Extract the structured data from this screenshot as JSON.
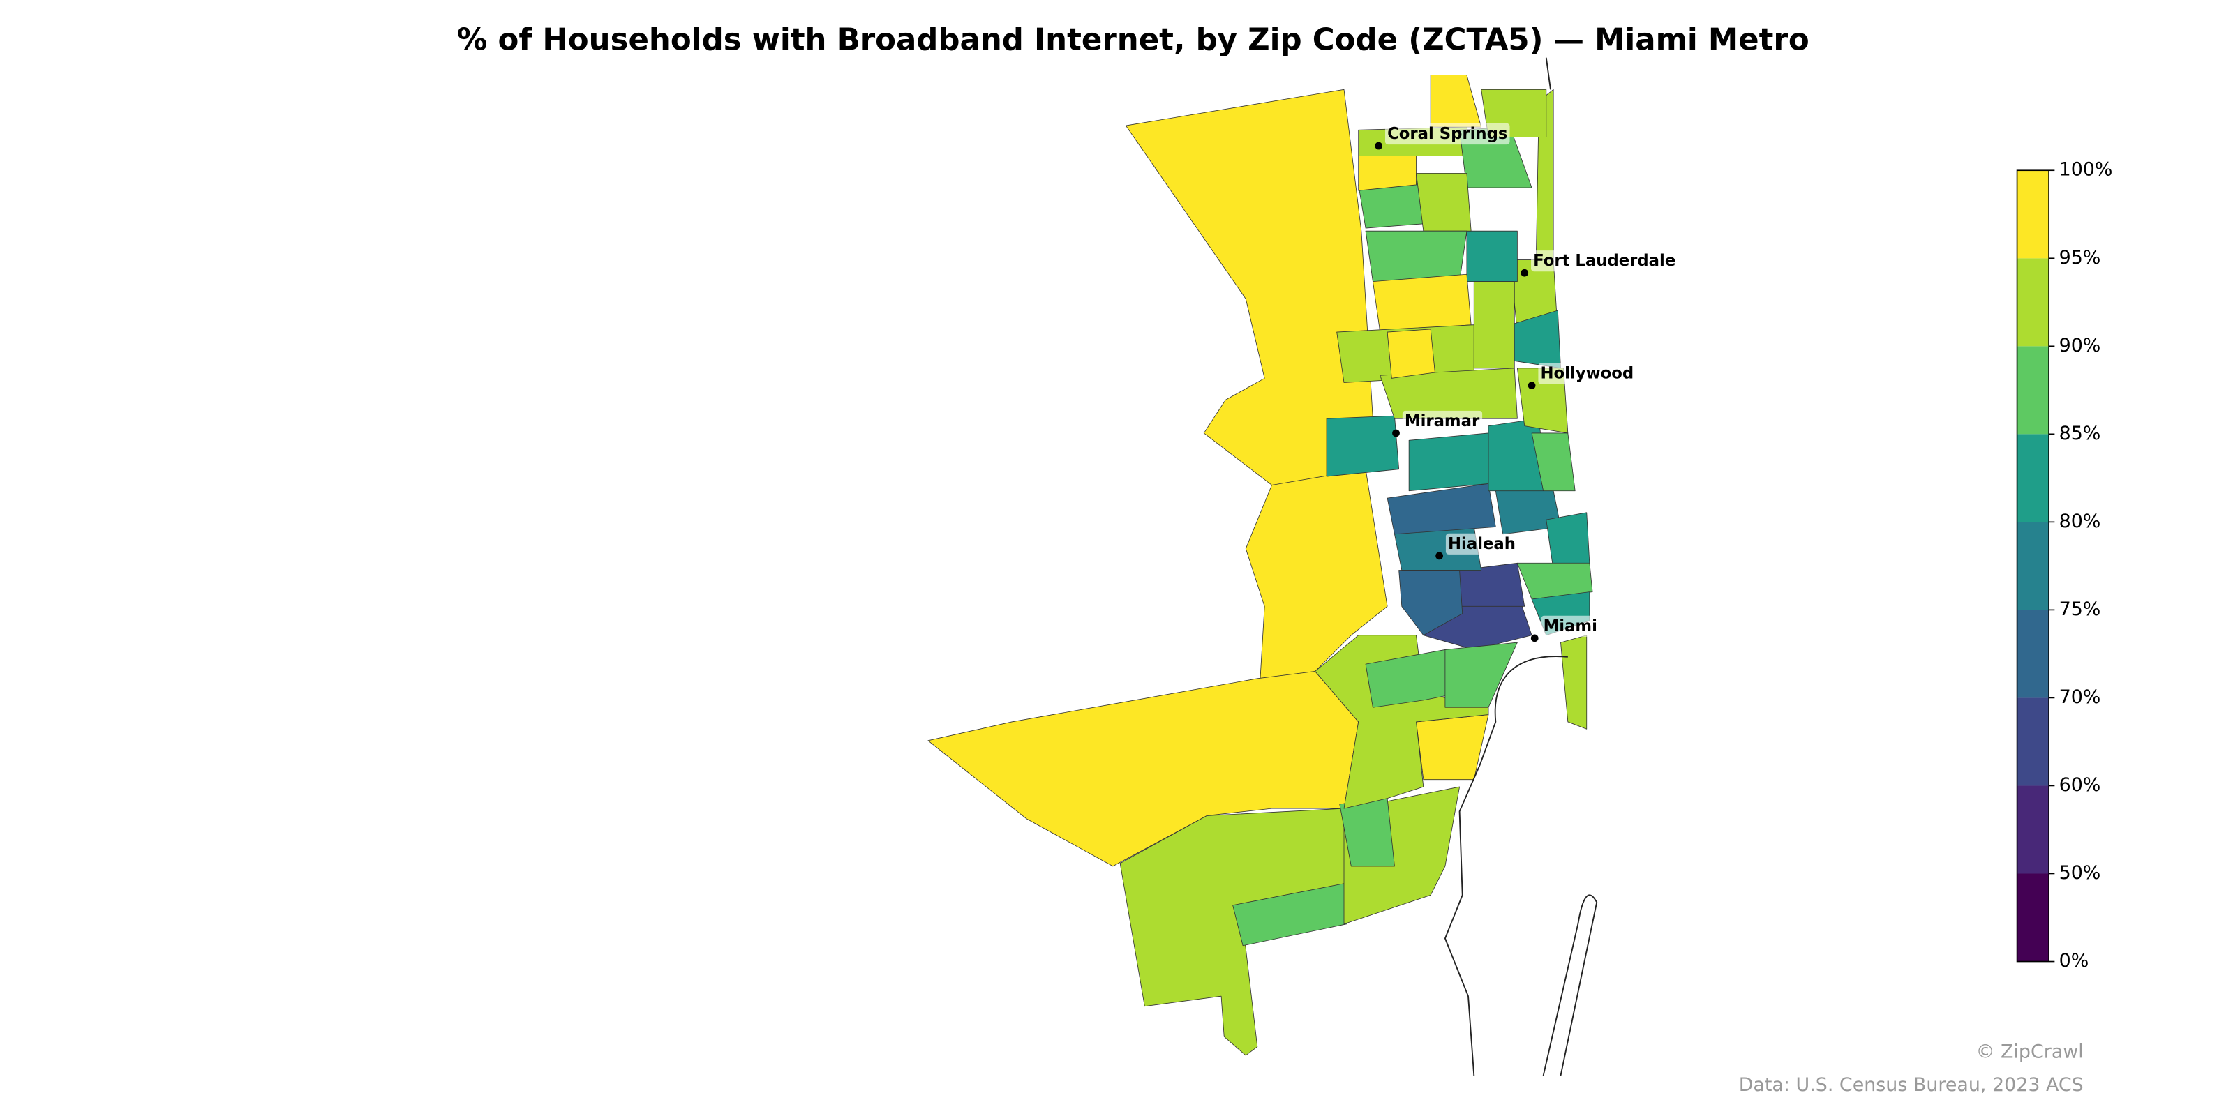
{
  "chart_data": {
    "type": "choropleth",
    "title": "% of Households with Broadband Internet, by Zip Code (ZCTA5) — Miami Metro",
    "values": [
      97,
      97,
      97,
      92,
      88,
      92,
      88,
      97,
      92,
      88,
      65,
      65,
      77,
      72,
      83,
      83,
      83,
      88,
      77,
      83,
      88,
      83,
      92,
      92,
      92,
      83,
      83,
      92,
      88,
      92,
      88,
      92,
      88,
      97,
      97,
      92,
      92,
      92,
      97,
      97,
      92,
      88,
      72
    ],
    "colors": [
      "#440154",
      "#482878",
      "#3e4989",
      "#31688e",
      "#26828e",
      "#1f9e89",
      "#5ec962",
      "#addc30",
      "#fde725"
    ],
    "yticks": [
      {
        "value": 0,
        "label": "0%"
      },
      {
        "value": 50,
        "label": "50%"
      },
      {
        "value": 60,
        "label": "60%"
      },
      {
        "value": 70,
        "label": "70%"
      },
      {
        "value": 75,
        "label": "75%"
      },
      {
        "value": 80,
        "label": "80%"
      },
      {
        "value": 85,
        "label": "85%"
      },
      {
        "value": 90,
        "label": "90%"
      },
      {
        "value": 95,
        "label": "95%"
      },
      {
        "value": 100,
        "label": "100%"
      }
    ],
    "cities": [
      "Coral Springs",
      "Fort Lauderdale",
      "Hollywood",
      "Miramar",
      "Hialeah",
      "Miami"
    ],
    "credit": "© ZipCrawl",
    "source": "Data: U.S. Census Bureau, 2023 ACS"
  }
}
